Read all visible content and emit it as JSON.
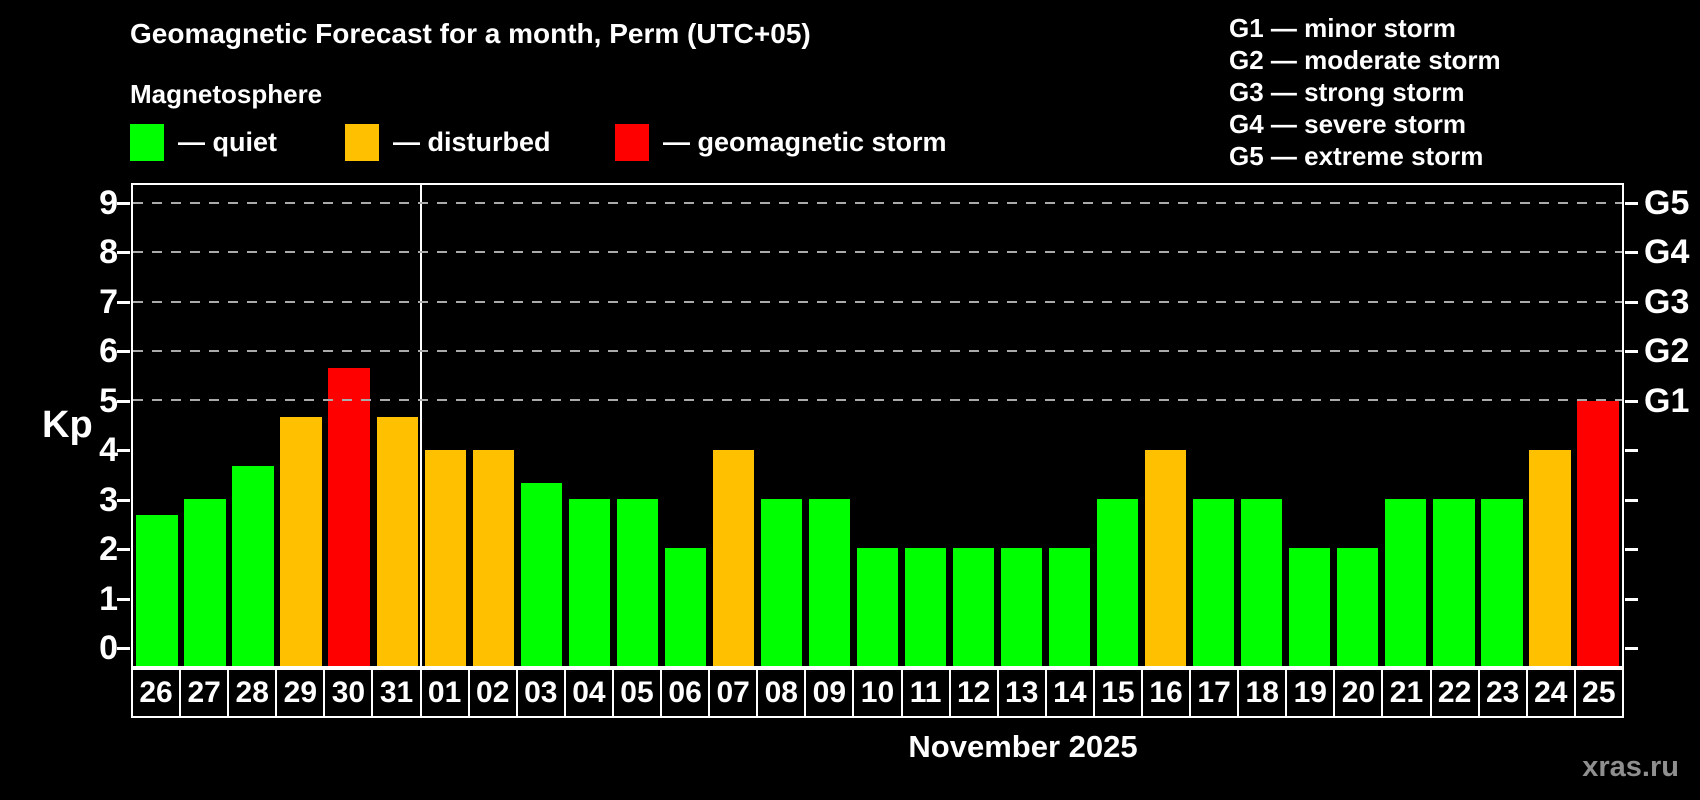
{
  "header": {
    "title": "Geomagnetic Forecast for a month, Perm (UTC+05)",
    "subtitle": "Magnetosphere"
  },
  "legend": {
    "quiet_label": "— quiet",
    "disturbed_label": "— disturbed",
    "storm_label": "— geomagnetic storm"
  },
  "g_scale_legend": [
    "G1 — minor storm",
    "G2 — moderate storm",
    "G3 — strong storm",
    "G4 — severe storm",
    "G5 — extreme storm"
  ],
  "colors": {
    "quiet": "#00ff00",
    "disturbed": "#ffc000",
    "storm": "#ff0000",
    "background": "#000000",
    "text": "#ffffff",
    "gridline": "#aaaaaa",
    "watermark": "#8f8f8f"
  },
  "chart_data": {
    "type": "bar",
    "title": "Geomagnetic Forecast for a month, Perm (UTC+05)",
    "ylabel": "Kp",
    "xlabel": "November 2025",
    "ylim": [
      0,
      9
    ],
    "y_ticks": [
      0,
      1,
      2,
      3,
      4,
      5,
      6,
      7,
      8,
      9
    ],
    "right_axis": [
      {
        "level": 5,
        "label": "G1"
      },
      {
        "level": 6,
        "label": "G2"
      },
      {
        "level": 7,
        "label": "G3"
      },
      {
        "level": 8,
        "label": "G4"
      },
      {
        "level": 9,
        "label": "G5"
      }
    ],
    "grid": "dashed horizontal lines at Kp 5,6,7,8,9",
    "legend_position": "top-left",
    "categories": [
      "26",
      "27",
      "28",
      "29",
      "30",
      "31",
      "01",
      "02",
      "03",
      "04",
      "05",
      "06",
      "07",
      "08",
      "09",
      "10",
      "11",
      "12",
      "13",
      "14",
      "15",
      "16",
      "17",
      "18",
      "19",
      "20",
      "21",
      "22",
      "23",
      "24",
      "25"
    ],
    "values": [
      2.67,
      3,
      3.67,
      4.67,
      5.67,
      4.67,
      4,
      4,
      3.33,
      3,
      3,
      2,
      4,
      3,
      3,
      2,
      2,
      2,
      2,
      2,
      3,
      4,
      3,
      3,
      2,
      2,
      3,
      3,
      3,
      4,
      5
    ],
    "statuses": [
      "quiet",
      "quiet",
      "quiet",
      "disturbed",
      "storm",
      "disturbed",
      "disturbed",
      "disturbed",
      "quiet",
      "quiet",
      "quiet",
      "quiet",
      "disturbed",
      "quiet",
      "quiet",
      "quiet",
      "quiet",
      "quiet",
      "quiet",
      "quiet",
      "quiet",
      "disturbed",
      "quiet",
      "quiet",
      "quiet",
      "quiet",
      "quiet",
      "quiet",
      "quiet",
      "disturbed",
      "storm"
    ],
    "divider_after_category_index": 5
  },
  "footer": {
    "month_label": "November 2025",
    "watermark": "xras.ru"
  }
}
